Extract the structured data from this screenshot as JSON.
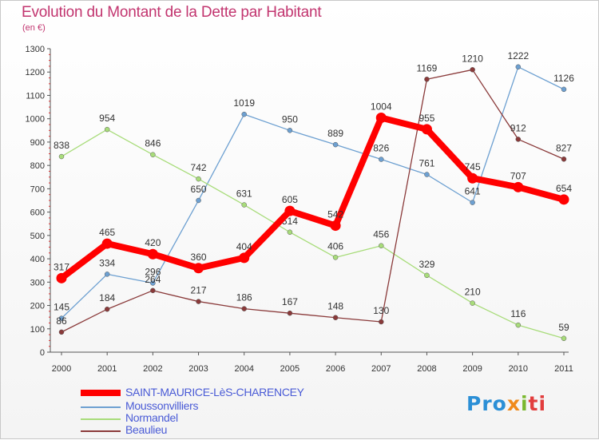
{
  "title": "Evolution du Montant de la Dette par Habitant",
  "subtitle": "(en €)",
  "logo": {
    "p1": "Pro",
    "p2": "x",
    "p3": "i",
    "p4": "ti"
  },
  "chart_data": {
    "type": "line",
    "categories": [
      "2000",
      "2001",
      "2002",
      "2003",
      "2004",
      "2005",
      "2006",
      "2007",
      "2008",
      "2009",
      "2010",
      "2011"
    ],
    "ylim": [
      0,
      1300
    ],
    "yticks": [
      0,
      100,
      200,
      300,
      400,
      500,
      600,
      700,
      800,
      900,
      1000,
      1100,
      1200,
      1300
    ],
    "grid": false,
    "legend": "bottom-left",
    "series": [
      {
        "name": "SAINT-MAURICE-LèS-CHARENCEY",
        "color": "#ff0000",
        "width": 8,
        "values": [
          317,
          465,
          420,
          360,
          404,
          605,
          542,
          1004,
          955,
          745,
          707,
          654
        ]
      },
      {
        "name": "Moussonvilliers",
        "color": "#6da0d1",
        "width": 1.3,
        "values": [
          145,
          334,
          296,
          650,
          1019,
          950,
          889,
          826,
          761,
          641,
          1222,
          1126
        ]
      },
      {
        "name": "Normandel",
        "color": "#a8dc7a",
        "width": 1.3,
        "values": [
          838,
          954,
          846,
          742,
          631,
          514,
          406,
          456,
          329,
          210,
          116,
          59
        ]
      },
      {
        "name": "Beaulieu",
        "color": "#8a3a3a",
        "width": 1.3,
        "values": [
          86,
          184,
          264,
          217,
          186,
          167,
          148,
          130,
          1169,
          1210,
          912,
          827
        ]
      }
    ]
  }
}
